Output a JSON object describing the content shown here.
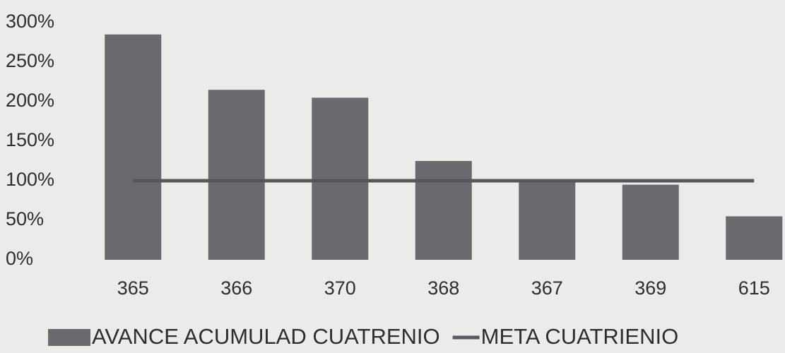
{
  "chart_data": {
    "type": "bar_line",
    "categories": [
      "365",
      "366",
      "370",
      "368",
      "367",
      "369",
      "615"
    ],
    "series": [
      {
        "name": "AVANCE ACUMULAD CUATRENIO",
        "type": "bar",
        "color": "#6a6a6e",
        "values": [
          285,
          215,
          205,
          125,
          98,
          95,
          55
        ]
      },
      {
        "name": "META CUATRIENIO",
        "type": "line",
        "color": "#58585c",
        "values": [
          100,
          100,
          100,
          100,
          100,
          100,
          100
        ]
      }
    ],
    "ylim": [
      0,
      300
    ],
    "yticks": [
      {
        "value": 0,
        "label": "0%"
      },
      {
        "value": 50,
        "label": "50%"
      },
      {
        "value": 100,
        "label": "100%"
      },
      {
        "value": 150,
        "label": "150%"
      },
      {
        "value": 200,
        "label": "200%"
      },
      {
        "value": 250,
        "label": "250%"
      },
      {
        "value": 300,
        "label": "300%"
      }
    ]
  }
}
